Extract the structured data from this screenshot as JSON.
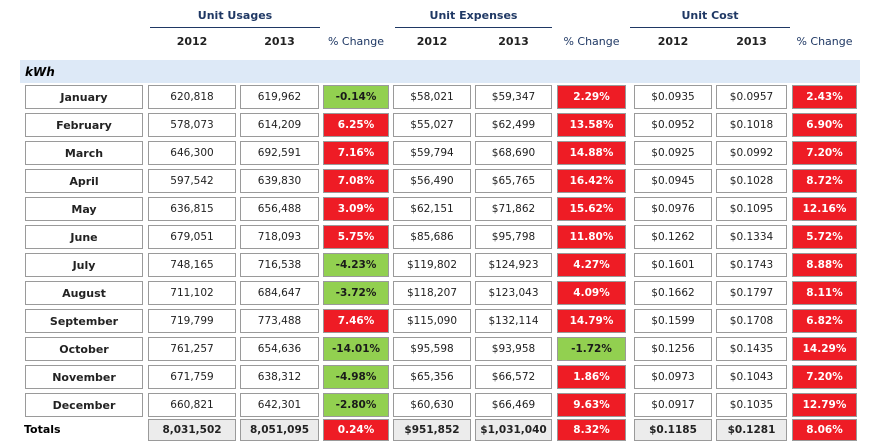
{
  "groups": [
    "Unit Usages",
    "Unit Expenses",
    "Unit Cost"
  ],
  "columns": [
    "2012",
    "2013",
    "% Change",
    "2012",
    "2013",
    "% Change",
    "2012",
    "2013",
    "% Change"
  ],
  "section": "kWh",
  "rows": [
    [
      "January",
      "620,818",
      "619,962",
      "-0.14%",
      "$58,021",
      "$59,347",
      "2.29%",
      "$0.0935",
      "$0.0957",
      "2.43%"
    ],
    [
      "February",
      "578,073",
      "614,209",
      "6.25%",
      "$55,027",
      "$62,499",
      "13.58%",
      "$0.0952",
      "$0.1018",
      "6.90%"
    ],
    [
      "March",
      "646,300",
      "692,591",
      "7.16%",
      "$59,794",
      "$68,690",
      "14.88%",
      "$0.0925",
      "$0.0992",
      "7.20%"
    ],
    [
      "April",
      "597,542",
      "639,830",
      "7.08%",
      "$56,490",
      "$65,765",
      "16.42%",
      "$0.0945",
      "$0.1028",
      "8.72%"
    ],
    [
      "May",
      "636,815",
      "656,488",
      "3.09%",
      "$62,151",
      "$71,862",
      "15.62%",
      "$0.0976",
      "$0.1095",
      "12.16%"
    ],
    [
      "June",
      "679,051",
      "718,093",
      "5.75%",
      "$85,686",
      "$95,798",
      "11.80%",
      "$0.1262",
      "$0.1334",
      "5.72%"
    ],
    [
      "July",
      "748,165",
      "716,538",
      "-4.23%",
      "$119,802",
      "$124,923",
      "4.27%",
      "$0.1601",
      "$0.1743",
      "8.88%"
    ],
    [
      "August",
      "711,102",
      "684,647",
      "-3.72%",
      "$118,207",
      "$123,043",
      "4.09%",
      "$0.1662",
      "$0.1797",
      "8.11%"
    ],
    [
      "September",
      "719,799",
      "773,488",
      "7.46%",
      "$115,090",
      "$132,114",
      "14.79%",
      "$0.1599",
      "$0.1708",
      "6.82%"
    ],
    [
      "October",
      "761,257",
      "654,636",
      "-14.01%",
      "$95,598",
      "$93,958",
      "-1.72%",
      "$0.1256",
      "$0.1435",
      "14.29%"
    ],
    [
      "November",
      "671,759",
      "638,312",
      "-4.98%",
      "$65,356",
      "$66,572",
      "1.86%",
      "$0.0973",
      "$0.1043",
      "7.20%"
    ],
    [
      "December",
      "660,821",
      "642,301",
      "-2.80%",
      "$60,630",
      "$66,469",
      "9.63%",
      "$0.0917",
      "$0.1035",
      "12.79%"
    ]
  ],
  "totals": [
    "Totals",
    "8,031,502",
    "8,051,095",
    "0.24%",
    "$951,852",
    "$1,031,040",
    "8.32%",
    "$0.1185",
    "$0.1281",
    "8.06%"
  ]
}
